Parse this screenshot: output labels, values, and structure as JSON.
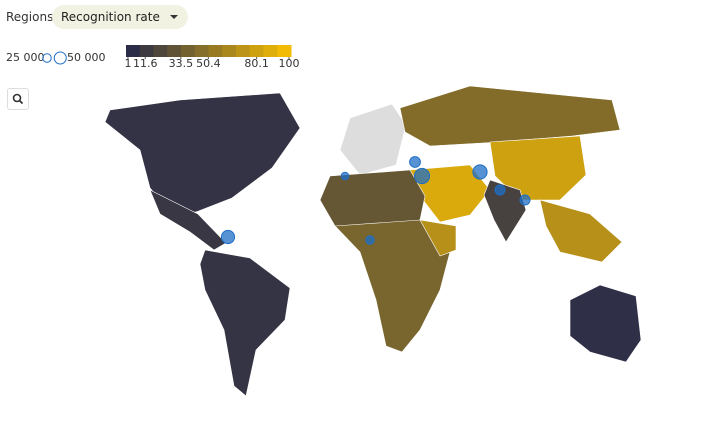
{
  "controls": {
    "label": "Regions",
    "dropdown": "Recognition rate"
  },
  "size_legend": {
    "ticks": [
      {
        "value": 25000,
        "label": "25 000"
      },
      {
        "value": 50000,
        "label": "50 000"
      }
    ]
  },
  "color_legend": {
    "lim": [
      1,
      100
    ],
    "ticks": [
      1,
      11.6,
      33.5,
      50.4,
      80.1,
      100
    ],
    "colors": [
      "#2b2d48",
      "#f2bb05"
    ],
    "nodata_color": "#dddddd"
  },
  "regions": [
    5,
    8,
    6,
    null,
    45,
    82,
    88,
    15,
    70,
    30,
    40,
    70,
    3
  ],
  "bubbles": [
    60000,
    40000,
    70000,
    35000,
    35000,
    20000,
    80000,
    25000
  ],
  "bubble_color": "#1f6fc5"
}
